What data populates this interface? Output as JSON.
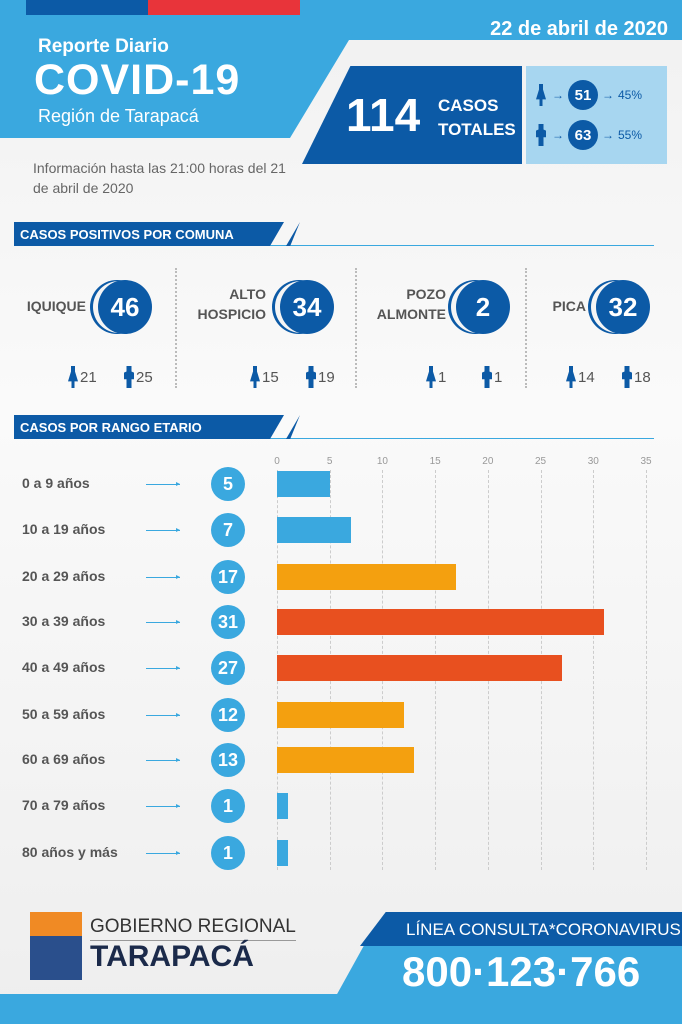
{
  "header": {
    "date": "22 de abril de 2020",
    "subtitle": "Reporte Diario",
    "title": "COVID-19",
    "region": "Región de Tarapacá",
    "info": "Información hasta las 21:00 horas del 21 de abril de 2020"
  },
  "totals": {
    "number": "114",
    "label1": "CASOS",
    "label2": "TOTALES",
    "female": {
      "count": "51",
      "pct": "45%"
    },
    "male": {
      "count": "63",
      "pct": "55%"
    },
    "arrow": "→"
  },
  "sections": {
    "comuna": "CASOS POSITIVOS POR COMUNA",
    "edad": "CASOS POR RANGO ETARIO"
  },
  "comunas": [
    {
      "name": "IQUIQUE",
      "total": "46",
      "female": "21",
      "male": "25"
    },
    {
      "name": "ALTO HOSPICIO",
      "total": "34",
      "female": "15",
      "male": "19"
    },
    {
      "name": "POZO ALMONTE",
      "total": "2",
      "female": "1",
      "male": "1"
    },
    {
      "name": "PICA",
      "total": "32",
      "female": "14",
      "male": "18"
    }
  ],
  "colors": {
    "low": "#3aa8df",
    "mid": "#f4a00f",
    "high": "#e8501f",
    "dark": "#0c5aa6"
  },
  "chart_data": {
    "type": "bar",
    "orientation": "horizontal",
    "title": "CASOS POR RANGO ETARIO",
    "categories": [
      "0 a 9 años",
      "10 a 19 años",
      "20 a 29 años",
      "30 a 39 años",
      "40 a 49 años",
      "50 a 59 años",
      "60 a 69 años",
      "70 a 79 años",
      "80 años y más"
    ],
    "values": [
      5,
      7,
      17,
      31,
      27,
      12,
      13,
      1,
      1
    ],
    "color_group": [
      "low",
      "low",
      "mid",
      "high",
      "high",
      "mid",
      "mid",
      "low",
      "low"
    ],
    "xticks": [
      0,
      5,
      10,
      15,
      20,
      25,
      30,
      35
    ],
    "xlim": [
      0,
      35
    ],
    "grid": true
  },
  "footer": {
    "logo_line1": "GOBIERNO REGIONAL",
    "logo_line2": "TARAPACÁ",
    "line_label": "LÍNEA CONSULTA*CORONAVIRUS",
    "phone": "800·123·766"
  }
}
